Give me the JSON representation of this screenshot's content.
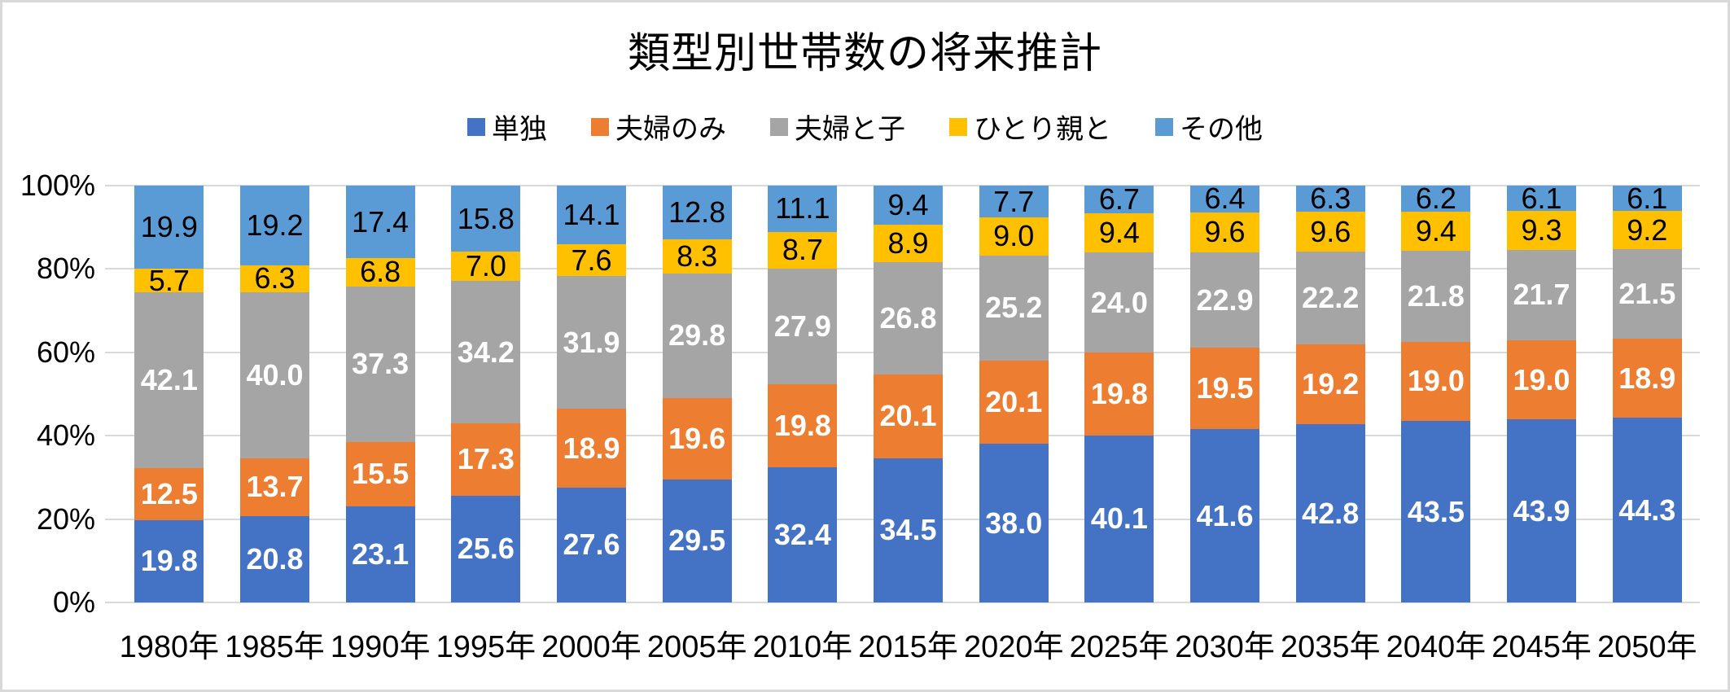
{
  "window": {
    "background": "#FFFFFF",
    "border_color": "#D9D9D9"
  },
  "chart_data": {
    "type": "bar",
    "stacking": "percent",
    "title": "類型別世帯数の将来推計",
    "categories": [
      "1980年",
      "1985年",
      "1990年",
      "1995年",
      "2000年",
      "2005年",
      "2010年",
      "2015年",
      "2020年",
      "2025年",
      "2030年",
      "2035年",
      "2040年",
      "2045年",
      "2050年"
    ],
    "series": [
      {
        "name": "単独",
        "color": "#4472C4",
        "label_color": "#FFFFFF",
        "label_bold": true,
        "values": [
          "19.8",
          "20.8",
          "23.1",
          "25.6",
          "27.6",
          "29.5",
          "32.4",
          "34.5",
          "38.0",
          "40.1",
          "41.6",
          "42.8",
          "43.5",
          "43.9",
          "44.3"
        ]
      },
      {
        "name": "夫婦のみ",
        "color": "#ED7D31",
        "label_color": "#FFFFFF",
        "label_bold": true,
        "values": [
          "12.5",
          "13.7",
          "15.5",
          "17.3",
          "18.9",
          "19.6",
          "19.8",
          "20.1",
          "20.1",
          "19.8",
          "19.5",
          "19.2",
          "19.0",
          "19.0",
          "18.9"
        ]
      },
      {
        "name": "夫婦と子",
        "color": "#A5A5A5",
        "label_color": "#FFFFFF",
        "label_bold": true,
        "values": [
          "42.1",
          "40.0",
          "37.3",
          "34.2",
          "31.9",
          "29.8",
          "27.9",
          "26.8",
          "25.2",
          "24.0",
          "22.9",
          "22.2",
          "21.8",
          "21.7",
          "21.5"
        ]
      },
      {
        "name": "ひとり親と",
        "color": "#FFC000",
        "label_color": "#000000",
        "label_bold": false,
        "values": [
          "5.7",
          "6.3",
          "6.8",
          "7.0",
          "7.6",
          "8.3",
          "8.7",
          "8.9",
          "9.0",
          "9.4",
          "9.6",
          "9.6",
          "9.4",
          "9.3",
          "9.2"
        ]
      },
      {
        "name": "その他",
        "color": "#5B9BD5",
        "label_color": "#000000",
        "label_bold": false,
        "values": [
          "19.9",
          "19.2",
          "17.4",
          "15.8",
          "14.1",
          "12.8",
          "11.1",
          "9.4",
          "7.7",
          "6.7",
          "6.4",
          "6.3",
          "6.2",
          "6.1",
          "6.1"
        ]
      }
    ],
    "y_ticks": [
      "100%",
      "80%",
      "60%",
      "40%",
      "20%",
      "0%"
    ],
    "ylim": [
      0,
      100
    ],
    "grid": true,
    "gridline_color": "#D9D9D9",
    "legend_position": "top"
  }
}
